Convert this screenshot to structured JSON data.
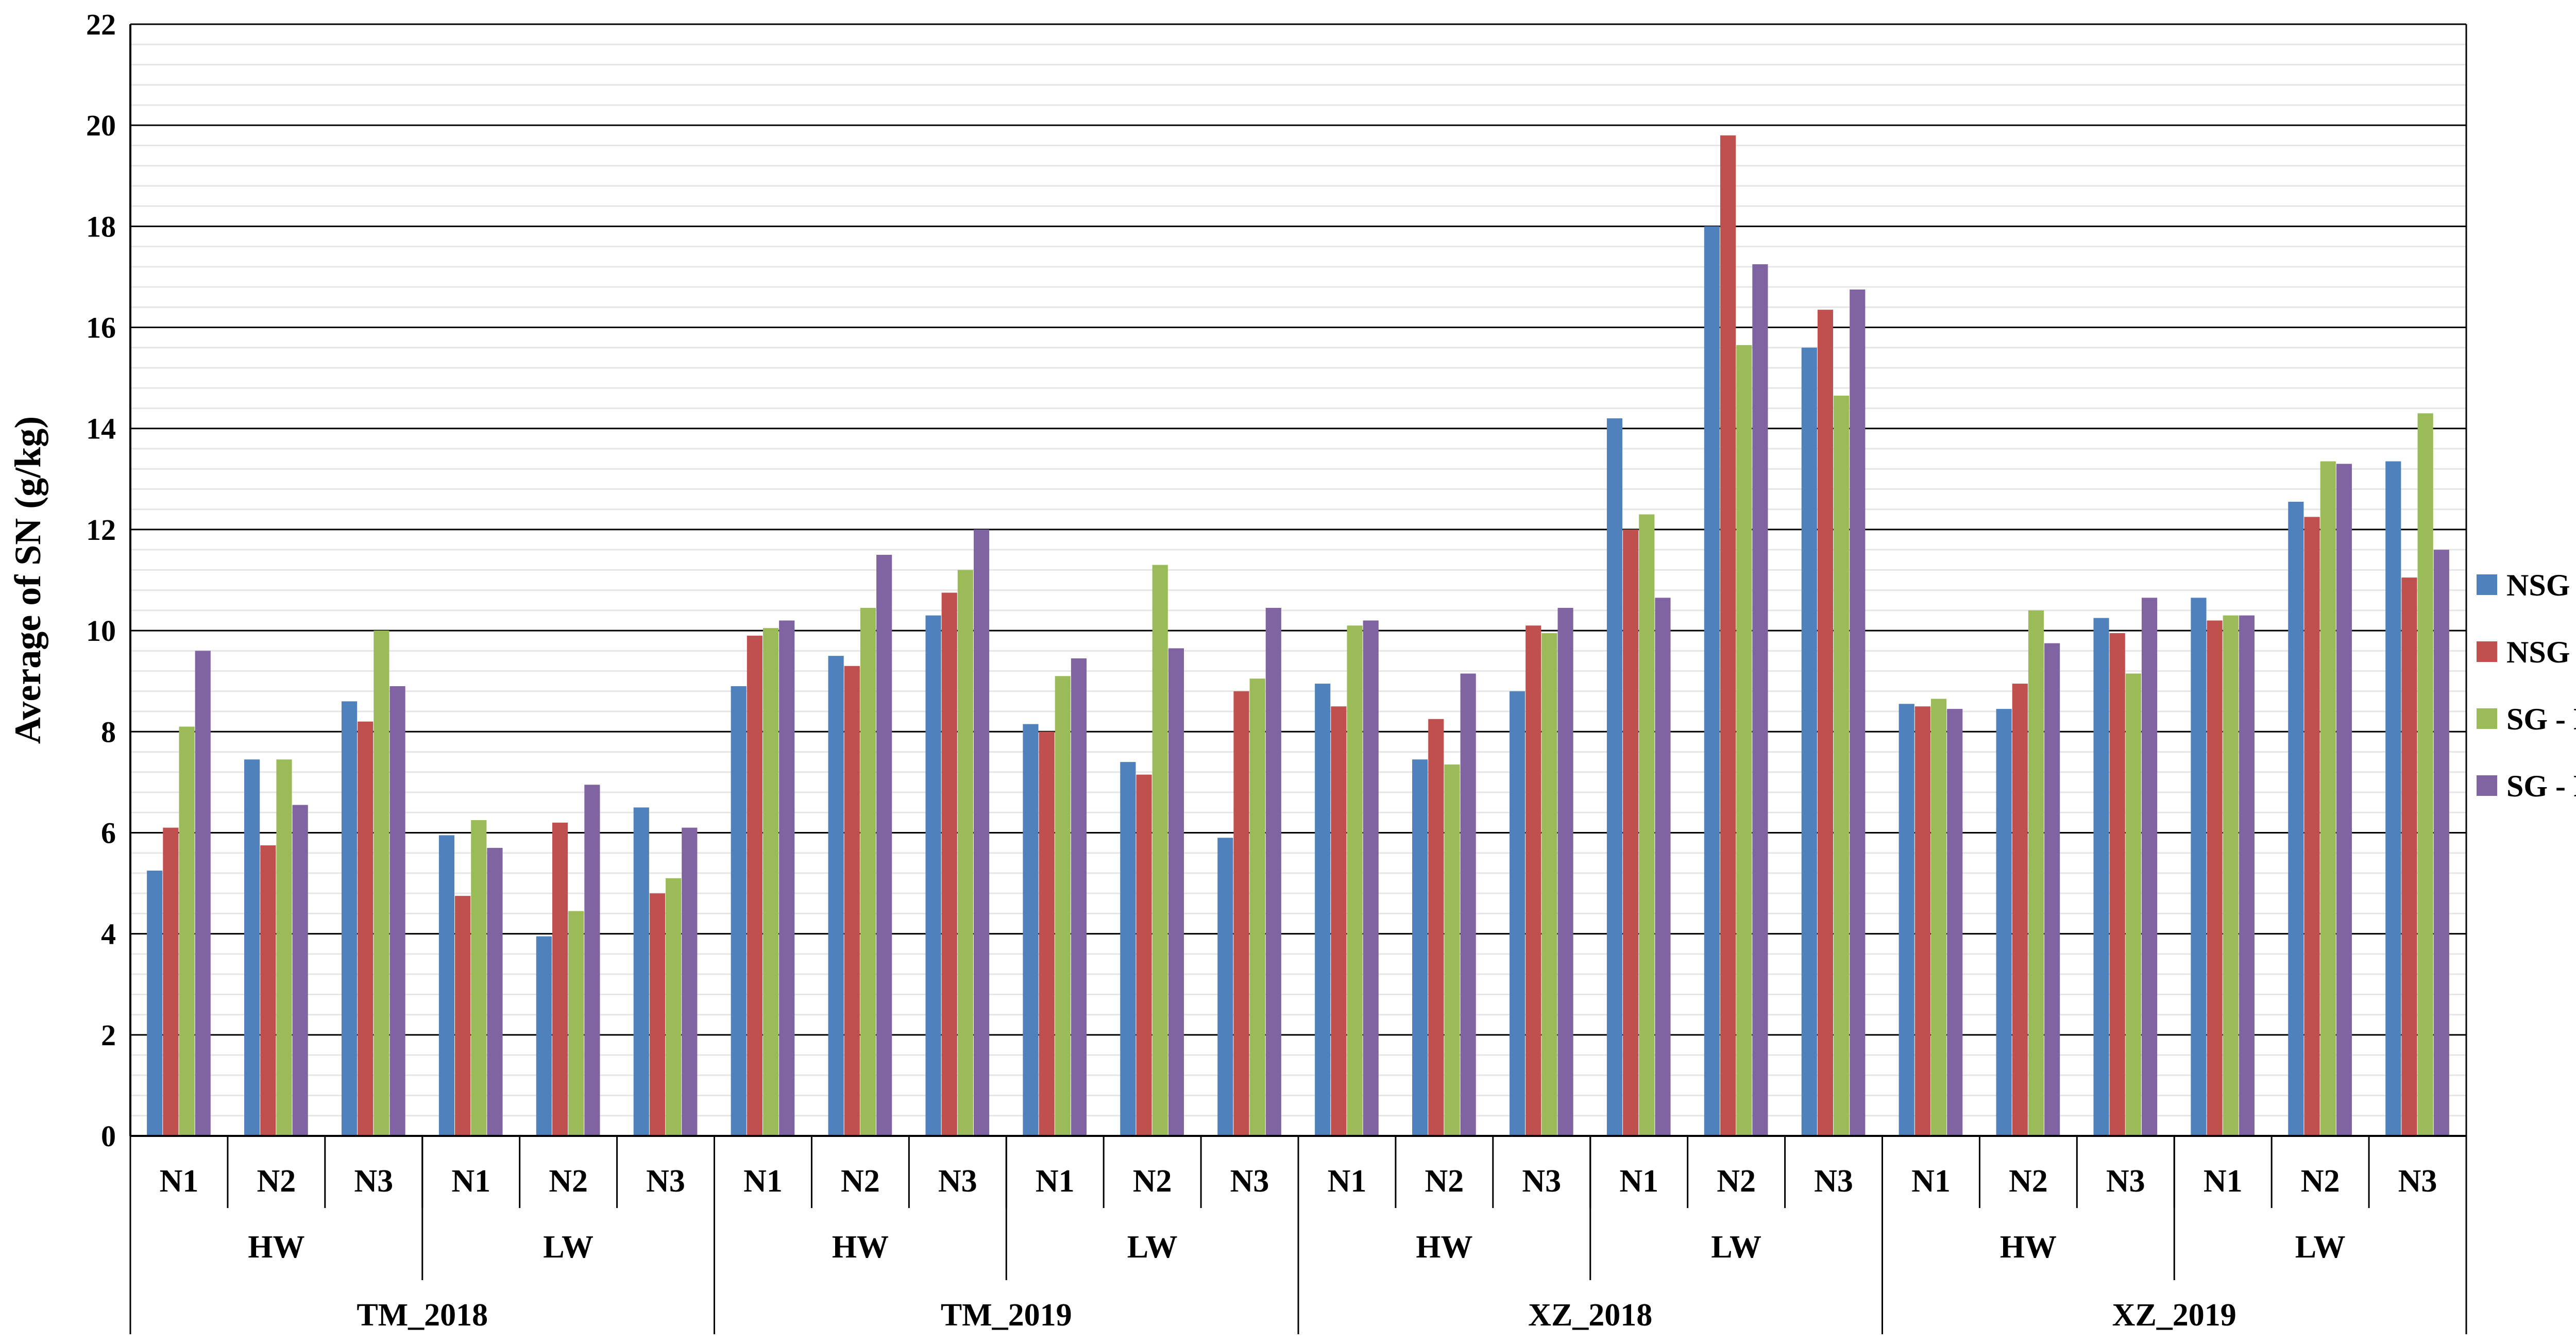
{
  "chart_data": {
    "type": "bar",
    "title": "",
    "xlabel": "",
    "ylabel": "Average of SN (g/kg)",
    "ylim": [
      0,
      22
    ],
    "yticks": [
      "0",
      "2",
      "4",
      "6",
      "8",
      "10",
      "12",
      "14",
      "16",
      "18",
      "20",
      "22"
    ],
    "grid": true,
    "legend_position": "right",
    "categories": [
      "N1",
      "N2",
      "N3",
      "N1",
      "N2",
      "N3",
      "N1",
      "N2",
      "N3",
      "N1",
      "N2",
      "N3",
      "N1",
      "N2",
      "N3",
      "N1",
      "N2",
      "N3",
      "N1",
      "N2",
      "N3",
      "N1",
      "N2",
      "N3"
    ],
    "level2": [
      {
        "label": "HW",
        "span": 3
      },
      {
        "label": "LW",
        "span": 3
      },
      {
        "label": "HW",
        "span": 3
      },
      {
        "label": "LW",
        "span": 3
      },
      {
        "label": "HW",
        "span": 3
      },
      {
        "label": "LW",
        "span": 3
      },
      {
        "label": "HW",
        "span": 3
      },
      {
        "label": "LW",
        "span": 3
      }
    ],
    "level3": [
      {
        "label": "TM_2018",
        "span": 6
      },
      {
        "label": "TM_2019",
        "span": 6
      },
      {
        "label": "XZ_2018",
        "span": 6
      },
      {
        "label": "XZ_2019",
        "span": 6
      }
    ],
    "series": [
      {
        "name": "NSG - H",
        "color": "#4F81BD",
        "values": [
          5.25,
          7.45,
          8.6,
          5.95,
          3.95,
          6.5,
          8.9,
          9.5,
          10.3,
          8.15,
          7.4,
          5.9,
          8.95,
          7.45,
          8.8,
          14.2,
          18.0,
          15.6,
          8.55,
          8.45,
          10.25,
          10.65,
          12.55,
          13.35
        ]
      },
      {
        "name": "NSG - R",
        "color": "#C0504D",
        "values": [
          6.1,
          5.75,
          8.2,
          4.75,
          6.2,
          4.8,
          9.9,
          9.3,
          10.75,
          8.0,
          7.15,
          8.8,
          8.5,
          8.25,
          10.1,
          12.0,
          19.8,
          16.35,
          8.5,
          8.95,
          9.95,
          10.2,
          12.25,
          11.05
        ]
      },
      {
        "name": "SG - H",
        "color": "#9BBB59",
        "values": [
          8.1,
          7.45,
          10.0,
          6.25,
          4.45,
          5.1,
          10.05,
          10.45,
          11.2,
          9.1,
          11.3,
          9.05,
          10.1,
          7.35,
          9.95,
          12.3,
          15.65,
          14.65,
          8.65,
          10.4,
          9.15,
          10.3,
          13.35,
          14.3
        ]
      },
      {
        "name": "SG - R",
        "color": "#8064A2",
        "values": [
          9.6,
          6.55,
          8.9,
          5.7,
          6.95,
          6.1,
          10.2,
          11.5,
          12.0,
          9.45,
          9.65,
          10.45,
          10.2,
          9.15,
          10.45,
          10.65,
          17.25,
          16.75,
          8.45,
          9.75,
          10.65,
          10.3,
          13.3,
          11.6
        ]
      }
    ]
  }
}
